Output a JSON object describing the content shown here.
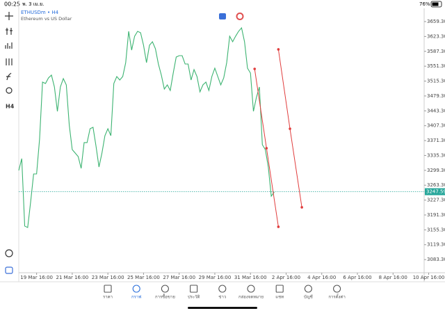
{
  "status_bar": {
    "time": "00:25",
    "date": "พ. 3 เม.ย.",
    "battery": "76%"
  },
  "symbol": {
    "name": "ETHUSDm • H4",
    "description": "Ethereum vs US Dollar"
  },
  "toolbar": {
    "timeframe": "H4"
  },
  "chart_data": {
    "type": "line",
    "series": [
      {
        "name": "ETHUSDm",
        "color": "#3cb371",
        "values": [
          3299.0,
          3327.7,
          3164.4,
          3161.0,
          3223.3,
          3290.6,
          3290.6,
          3374.8,
          3512.8,
          3509.5,
          3522.9,
          3529.7,
          3501.1,
          3442.1,
          3501.1,
          3521.3,
          3506.1,
          3408.5,
          3349.5,
          3341.1,
          3332.7,
          3304.1,
          3366.4,
          3366.4,
          3400.0,
          3403.4,
          3358.0,
          3307.4,
          3341.1,
          3383.2,
          3400.0,
          3383.2,
          3509.5,
          3526.3,
          3517.9,
          3526.3,
          3560.0,
          3635.7,
          3590.3,
          3623.9,
          3635.7,
          3632.4,
          3602.1,
          3560.0,
          3602.1,
          3610.5,
          3593.6,
          3556.6,
          3529.7,
          3496.0,
          3506.1,
          3492.6,
          3534.7,
          3573.4,
          3576.8,
          3576.8,
          3556.6,
          3556.6,
          3517.9,
          3543.1,
          3526.3,
          3489.3,
          3506.1,
          3512.8,
          3492.6,
          3526.3,
          3546.5,
          3526.3,
          3506.1,
          3522.9,
          3560.0,
          3623.9,
          3610.5,
          3623.9,
          3635.7,
          3644.1,
          3610.5,
          3546.5,
          3534.7,
          3442.1,
          3475.8,
          3501.1,
          3361.3,
          3349.5,
          3307.4,
          3236.7,
          3246.8
        ]
      }
    ],
    "trend_lines": [
      {
        "color": "#e03c3c",
        "x": [
          79.4,
          83.4,
          87.4
        ],
        "values": [
          3544.8,
          3352.9,
          3162.7
        ]
      },
      {
        "color": "#e03c3c",
        "x": [
          87.4,
          91.3,
          95.3
        ],
        "values": [
          3592.0,
          3400.0,
          3209.8
        ]
      }
    ],
    "current_price": 3247.59,
    "price_color": "#26a69a",
    "xlim": [
      0,
      136
    ],
    "xticks": [
      {
        "value": 6,
        "label": "19 Mar 16:00"
      },
      {
        "value": 18,
        "label": "21 Mar 16:00"
      },
      {
        "value": 30,
        "label": "23 Mar 16:00"
      },
      {
        "value": 42,
        "label": "25 Mar 16:00"
      },
      {
        "value": 54,
        "label": "27 Mar 16:00"
      },
      {
        "value": 66,
        "label": "29 Mar 16:00"
      },
      {
        "value": 78,
        "label": "31 Mar 16:00"
      },
      {
        "value": 90,
        "label": "2 Apr 16:00"
      },
      {
        "value": 102,
        "label": "4 Apr 16:00"
      },
      {
        "value": 114,
        "label": "6 Apr 16:00"
      },
      {
        "value": 126,
        "label": "8 Apr 16:00"
      },
      {
        "value": 138,
        "label": "10 Apr 16:00"
      }
    ],
    "ylim": [
      3051.5,
      3691.3
    ],
    "yticks": [
      {
        "value": 3659.3,
        "label": "3659.30"
      },
      {
        "value": 3623.3,
        "label": "3623.30"
      },
      {
        "value": 3587.3,
        "label": "3587.30"
      },
      {
        "value": 3551.3,
        "label": "3551.30"
      },
      {
        "value": 3515.3,
        "label": "3515.30"
      },
      {
        "value": 3479.3,
        "label": "3479.30"
      },
      {
        "value": 3443.3,
        "label": "3443.30"
      },
      {
        "value": 3407.3,
        "label": "3407.30"
      },
      {
        "value": 3371.3,
        "label": "3371.30"
      },
      {
        "value": 3335.3,
        "label": "3335.30"
      },
      {
        "value": 3299.3,
        "label": "3299.30"
      },
      {
        "value": 3263.3,
        "label": "3263.30"
      },
      {
        "value": 3227.3,
        "label": "3227.30"
      },
      {
        "value": 3191.3,
        "label": "3191.30"
      },
      {
        "value": 3155.3,
        "label": "3155.30"
      },
      {
        "value": 3119.3,
        "label": "3119.30"
      },
      {
        "value": 3083.3,
        "label": "3083.30"
      }
    ]
  },
  "nav": {
    "items": [
      "ราคา",
      "กราฟ",
      "การซื้อขาย",
      "ประวัติ",
      "ข่าว",
      "กล่องจดหมาย",
      "แชท",
      "บัญชี",
      "การตั้งค่า"
    ],
    "active": 1
  }
}
